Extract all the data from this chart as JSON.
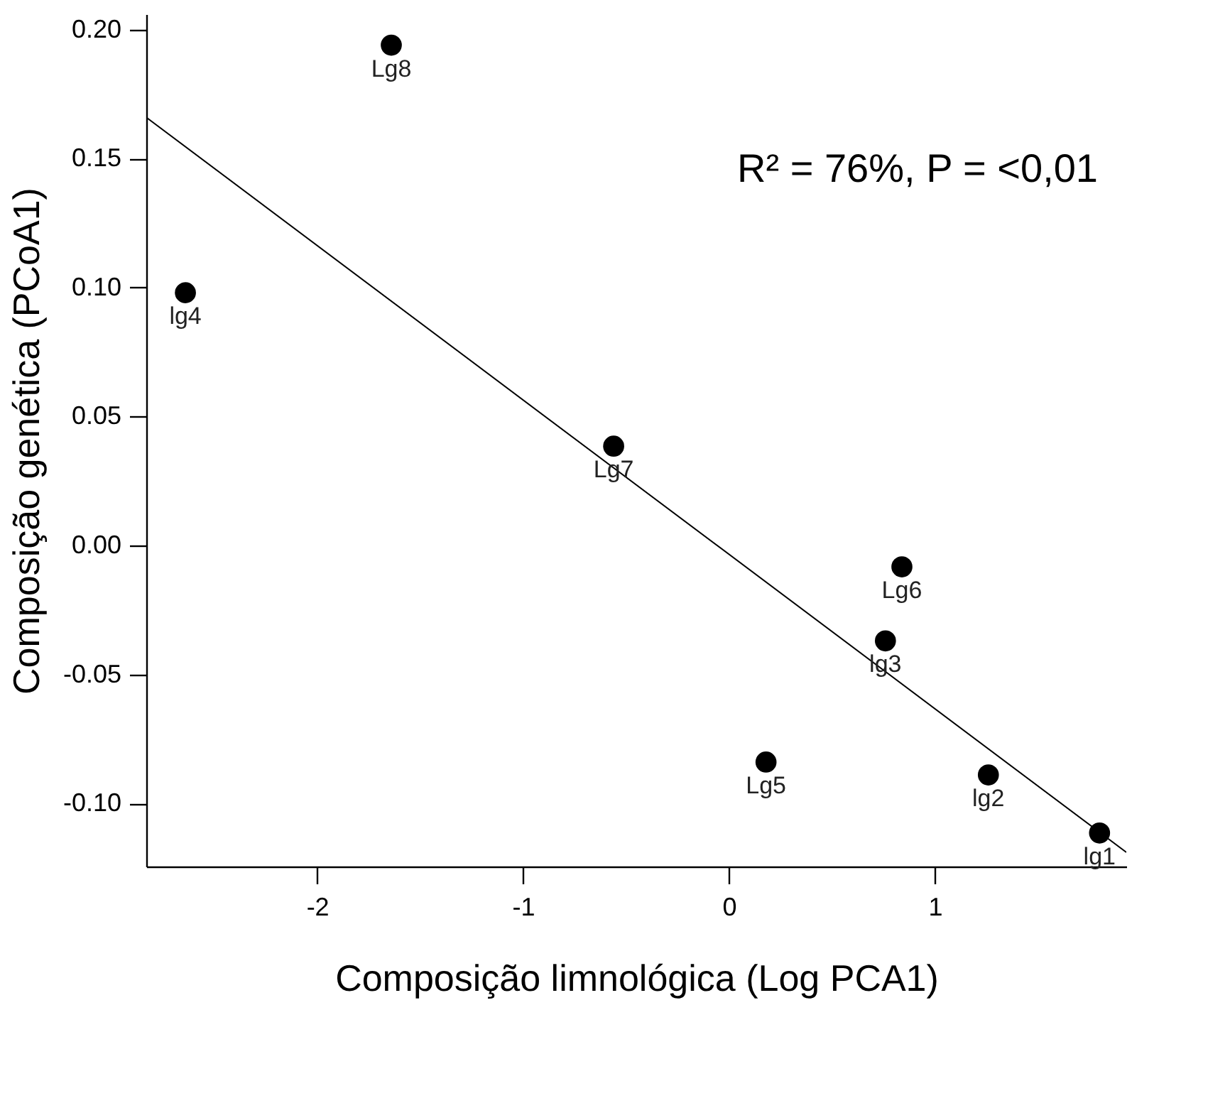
{
  "chart_data": {
    "type": "scatter",
    "xlabel": "Composição limnológica (Log PCA1)",
    "ylabel": "Composição genética (PCoA1)",
    "xlim": [
      -2.83,
      1.93
    ],
    "ylim": [
      -0.1245,
      0.206
    ],
    "xticks": [
      -2,
      -1,
      0,
      1
    ],
    "yticks": [
      {
        "value": -0.1,
        "label": "-0.10"
      },
      {
        "value": -0.05,
        "label": "-0.05"
      },
      {
        "value": 0,
        "label": "0.00"
      },
      {
        "value": 0.05,
        "label": "0.05"
      },
      {
        "value": 0.1,
        "label": "0.10"
      },
      {
        "value": 0.15,
        "label": "0.15"
      },
      {
        "value": 0.2,
        "label": "0.20"
      }
    ],
    "grid": false,
    "series": [
      {
        "marker": "circle",
        "color": "#000000",
        "x": [
          -1.64,
          -2.64,
          -0.56,
          0.84,
          0.76,
          0.18,
          1.26,
          1.8
        ],
        "values": [
          0.194,
          0.098,
          0.0385,
          -0.0083,
          -0.037,
          -0.084,
          -0.089,
          -0.1115
        ]
      },
      {
        "type": "line",
        "color": "#000000",
        "line_style": "solid",
        "x": [
          -2.83,
          1.93
        ],
        "values": [
          0.166,
          -0.119
        ]
      }
    ],
    "annotations": [
      {
        "text": "Lg8",
        "x": -1.64,
        "y": 0.194
      },
      {
        "text": "lg4",
        "x": -2.64,
        "y": 0.098
      },
      {
        "text": "Lg7",
        "x": -0.56,
        "y": 0.0385
      },
      {
        "text": "Lg6",
        "x": 0.84,
        "y": -0.0083
      },
      {
        "text": "lg3",
        "x": 0.76,
        "y": -0.037
      },
      {
        "text": "Lg5",
        "x": 0.18,
        "y": -0.084
      },
      {
        "text": "lg2",
        "x": 1.26,
        "y": -0.089
      },
      {
        "text": "lg1",
        "x": 1.8,
        "y": -0.1115
      },
      "R² = 76%, P = <0,01"
    ]
  }
}
